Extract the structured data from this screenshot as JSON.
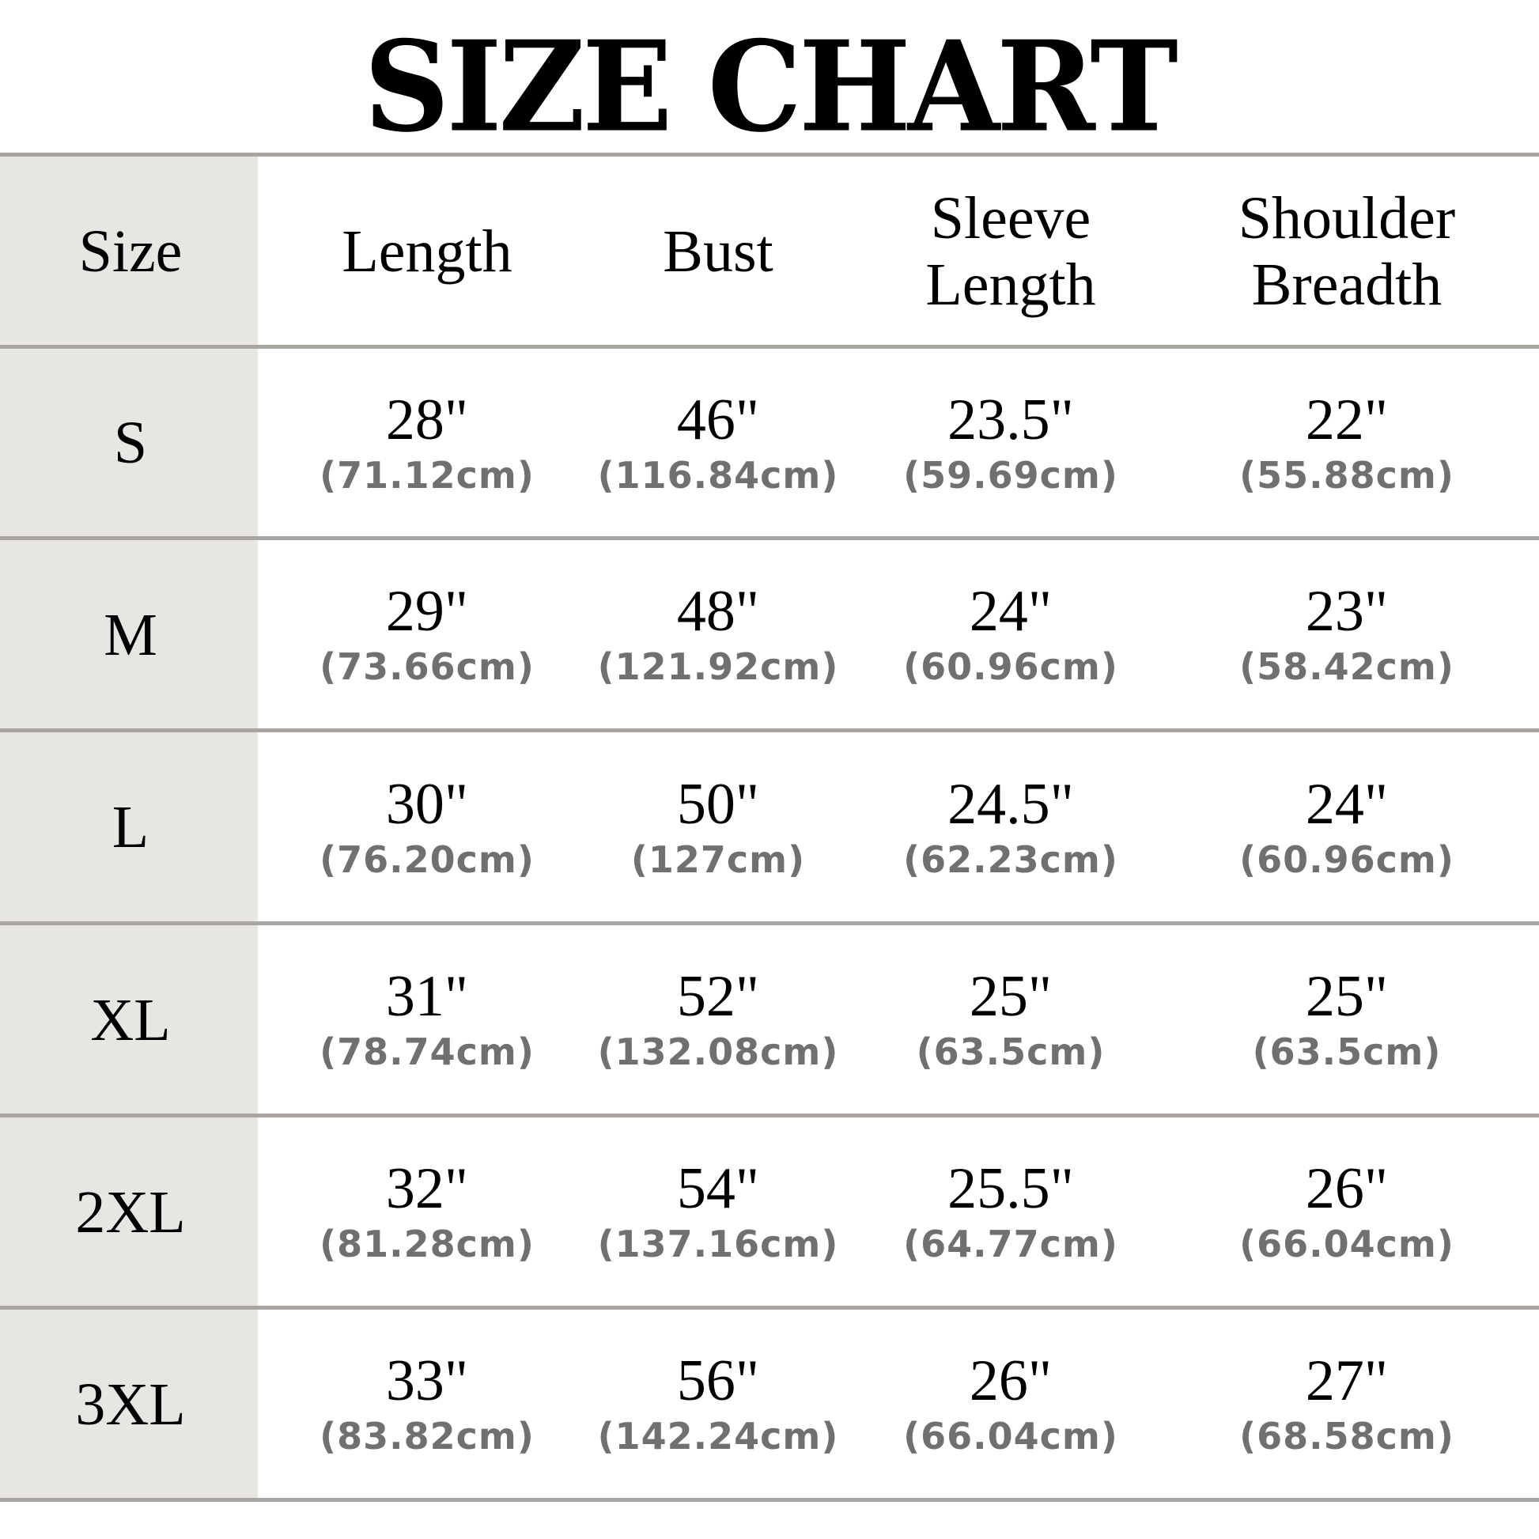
{
  "title": "SIZE CHART",
  "colors": {
    "size_column_bg": "#e8e6e2",
    "rule": "#a9a5a0",
    "metric_text": "#707070"
  },
  "headers": [
    {
      "lines": [
        "Size"
      ]
    },
    {
      "lines": [
        "Length"
      ]
    },
    {
      "lines": [
        "Bust"
      ]
    },
    {
      "lines": [
        "Sleeve",
        "Length"
      ]
    },
    {
      "lines": [
        "Shoulder",
        "Breadth"
      ]
    }
  ],
  "rows": [
    {
      "size": "S",
      "cells": [
        {
          "in": "28\"",
          "cm": "(71.12cm)"
        },
        {
          "in": "46\"",
          "cm": "(116.84cm)"
        },
        {
          "in": "23.5\"",
          "cm": "(59.69cm)"
        },
        {
          "in": "22\"",
          "cm": "(55.88cm)"
        }
      ]
    },
    {
      "size": "M",
      "cells": [
        {
          "in": "29\"",
          "cm": "(73.66cm)"
        },
        {
          "in": "48\"",
          "cm": "(121.92cm)"
        },
        {
          "in": "24\"",
          "cm": "(60.96cm)"
        },
        {
          "in": "23\"",
          "cm": "(58.42cm)"
        }
      ]
    },
    {
      "size": "L",
      "cells": [
        {
          "in": "30\"",
          "cm": "(76.20cm)"
        },
        {
          "in": "50\"",
          "cm": "(127cm)"
        },
        {
          "in": "24.5\"",
          "cm": "(62.23cm)"
        },
        {
          "in": "24\"",
          "cm": "(60.96cm)"
        }
      ]
    },
    {
      "size": "XL",
      "cells": [
        {
          "in": "31\"",
          "cm": "(78.74cm)"
        },
        {
          "in": "52\"",
          "cm": "(132.08cm)"
        },
        {
          "in": "25\"",
          "cm": "(63.5cm)"
        },
        {
          "in": "25\"",
          "cm": "(63.5cm)"
        }
      ]
    },
    {
      "size": "2XL",
      "cells": [
        {
          "in": "32\"",
          "cm": "(81.28cm)"
        },
        {
          "in": "54\"",
          "cm": "(137.16cm)"
        },
        {
          "in": "25.5\"",
          "cm": "(64.77cm)"
        },
        {
          "in": "26\"",
          "cm": "(66.04cm)"
        }
      ]
    },
    {
      "size": "3XL",
      "cells": [
        {
          "in": "33\"",
          "cm": "(83.82cm)"
        },
        {
          "in": "56\"",
          "cm": "(142.24cm)"
        },
        {
          "in": "26\"",
          "cm": "(66.04cm)"
        },
        {
          "in": "27\"",
          "cm": "(68.58cm)"
        }
      ]
    }
  ]
}
